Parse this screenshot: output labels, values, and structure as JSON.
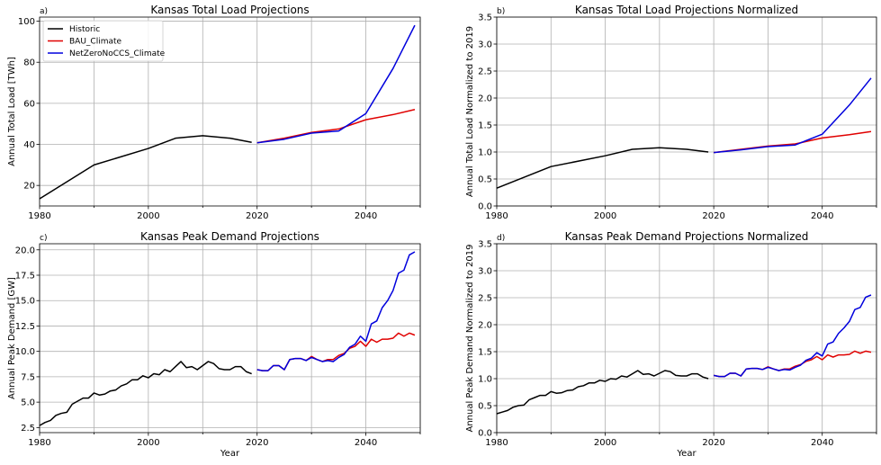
{
  "colors": {
    "Historic": "#000000",
    "BAU_Climate": "#e00000",
    "NetZeroNoCCS_Climate": "#0000dd"
  },
  "chart_data": [
    {
      "type": "line",
      "panel_label": "a)",
      "title": "Kansas Total Load Projections",
      "xlabel": "",
      "ylabel": "Annual Total Load [TWh]",
      "xlim": [
        1980,
        2050
      ],
      "ylim": [
        10,
        102
      ],
      "xticks": [
        1980,
        2000,
        2020,
        2040
      ],
      "yticks": [
        20,
        40,
        60,
        80,
        100
      ],
      "ytick_labels": [
        "20",
        "40",
        "60",
        "80",
        "100"
      ],
      "grid": true,
      "legend": "top-left",
      "series": [
        {
          "name": "Historic",
          "x": [
            1980,
            1990,
            2000,
            2005,
            2010,
            2015,
            2019
          ],
          "y": [
            13.5,
            30,
            38,
            43,
            44.2,
            43,
            41
          ]
        },
        {
          "name": "BAU_Climate",
          "x": [
            2020,
            2025,
            2030,
            2035,
            2040,
            2045,
            2049
          ],
          "y": [
            40.8,
            43,
            45.8,
            47.5,
            52,
            54.5,
            57
          ]
        },
        {
          "name": "NetZeroNoCCS_Climate",
          "x": [
            2020,
            2025,
            2030,
            2035,
            2040,
            2045,
            2049
          ],
          "y": [
            40.8,
            42.5,
            45.5,
            46.5,
            55,
            77,
            98
          ]
        }
      ]
    },
    {
      "type": "line",
      "panel_label": "b)",
      "title": "Kansas Total Load Projections Normalized",
      "xlabel": "",
      "ylabel": "Annual Total Load Normalized to 2019",
      "xlim": [
        1980,
        2050
      ],
      "ylim": [
        0,
        3.5
      ],
      "xticks": [
        1980,
        2000,
        2020,
        2040
      ],
      "yticks": [
        0,
        0.5,
        1,
        1.5,
        2,
        2.5,
        3,
        3.5
      ],
      "ytick_labels": [
        "0.0",
        "0.5",
        "1.0",
        "1.5",
        "2.0",
        "2.5",
        "3.0",
        "3.5"
      ],
      "grid": true,
      "series": [
        {
          "name": "Historic",
          "x": [
            1980,
            1990,
            2000,
            2005,
            2010,
            2015,
            2019
          ],
          "y": [
            0.33,
            0.73,
            0.93,
            1.05,
            1.08,
            1.05,
            1.0
          ]
        },
        {
          "name": "BAU_Climate",
          "x": [
            2020,
            2025,
            2030,
            2035,
            2040,
            2045,
            2049
          ],
          "y": [
            0.99,
            1.05,
            1.11,
            1.15,
            1.26,
            1.32,
            1.38
          ]
        },
        {
          "name": "NetZeroNoCCS_Climate",
          "x": [
            2020,
            2025,
            2030,
            2035,
            2040,
            2045,
            2049
          ],
          "y": [
            0.99,
            1.04,
            1.1,
            1.13,
            1.33,
            1.87,
            2.37
          ]
        }
      ]
    },
    {
      "type": "line",
      "panel_label": "c)",
      "title": "Kansas Peak Demand Projections",
      "xlabel": "Year",
      "ylabel": "Annual Peak Demand [GW]",
      "xlim": [
        1980,
        2050
      ],
      "ylim": [
        2.0,
        20.6
      ],
      "xticks": [
        1980,
        2000,
        2020,
        2040
      ],
      "yticks": [
        2.5,
        5,
        7.5,
        10,
        12.5,
        15,
        17.5,
        20
      ],
      "ytick_labels": [
        "2.5",
        "5.0",
        "7.5",
        "10.0",
        "12.5",
        "15.0",
        "17.5",
        "20.0"
      ],
      "grid": true,
      "series": [
        {
          "name": "Historic",
          "x": [
            1980,
            1981,
            1982,
            1983,
            1984,
            1985,
            1986,
            1987,
            1988,
            1989,
            1990,
            1991,
            1992,
            1993,
            1994,
            1995,
            1996,
            1997,
            1998,
            1999,
            2000,
            2001,
            2002,
            2003,
            2004,
            2005,
            2006,
            2007,
            2008,
            2009,
            2010,
            2011,
            2012,
            2013,
            2014,
            2015,
            2016,
            2017,
            2018,
            2019
          ],
          "y": [
            2.7,
            3.0,
            3.2,
            3.7,
            3.9,
            4.0,
            4.8,
            5.1,
            5.4,
            5.4,
            5.9,
            5.7,
            5.8,
            6.1,
            6.2,
            6.6,
            6.8,
            7.2,
            7.2,
            7.6,
            7.4,
            7.8,
            7.7,
            8.2,
            8.0,
            8.5,
            9.0,
            8.4,
            8.5,
            8.2,
            8.6,
            9.0,
            8.8,
            8.3,
            8.2,
            8.2,
            8.5,
            8.5,
            8.0,
            7.8
          ]
        },
        {
          "name": "BAU_Climate",
          "x": [
            2020,
            2021,
            2022,
            2023,
            2024,
            2025,
            2026,
            2027,
            2028,
            2029,
            2030,
            2031,
            2032,
            2033,
            2034,
            2035,
            2036,
            2037,
            2038,
            2039,
            2040,
            2041,
            2042,
            2043,
            2044,
            2045,
            2046,
            2047,
            2048,
            2049
          ],
          "y": [
            8.2,
            8.1,
            8.1,
            8.6,
            8.6,
            8.2,
            9.2,
            9.3,
            9.3,
            9.1,
            9.5,
            9.2,
            9.0,
            9.2,
            9.2,
            9.6,
            9.8,
            10.3,
            10.5,
            11.0,
            10.5,
            11.2,
            10.9,
            11.2,
            11.2,
            11.3,
            11.8,
            11.5,
            11.8,
            11.6
          ]
        },
        {
          "name": "NetZeroNoCCS_Climate",
          "x": [
            2020,
            2021,
            2022,
            2023,
            2024,
            2025,
            2026,
            2027,
            2028,
            2029,
            2030,
            2031,
            2032,
            2033,
            2034,
            2035,
            2036,
            2037,
            2038,
            2039,
            2040,
            2041,
            2042,
            2043,
            2044,
            2045,
            2046,
            2047,
            2048,
            2049
          ],
          "y": [
            8.2,
            8.1,
            8.1,
            8.6,
            8.6,
            8.2,
            9.2,
            9.3,
            9.3,
            9.1,
            9.4,
            9.2,
            9.0,
            9.1,
            9.0,
            9.4,
            9.7,
            10.4,
            10.7,
            11.5,
            11.0,
            12.7,
            13.0,
            14.3,
            15.0,
            16.0,
            17.7,
            18.0,
            19.5,
            19.8
          ]
        }
      ]
    },
    {
      "type": "line",
      "panel_label": "d)",
      "title": "Kansas Peak Demand Projections Normalized",
      "xlabel": "Year",
      "ylabel": "Annual Peak Demand Normalized to 2019",
      "xlim": [
        1980,
        2050
      ],
      "ylim": [
        0,
        3.5
      ],
      "xticks": [
        1980,
        2000,
        2020,
        2040
      ],
      "yticks": [
        0,
        0.5,
        1,
        1.5,
        2,
        2.5,
        3,
        3.5
      ],
      "ytick_labels": [
        "0.0",
        "0.5",
        "1.0",
        "1.5",
        "2.0",
        "2.5",
        "3.0",
        "3.5"
      ],
      "grid": true,
      "series": [
        {
          "name": "Historic",
          "x": [
            1980,
            1981,
            1982,
            1983,
            1984,
            1985,
            1986,
            1987,
            1988,
            1989,
            1990,
            1991,
            1992,
            1993,
            1994,
            1995,
            1996,
            1997,
            1998,
            1999,
            2000,
            2001,
            2002,
            2003,
            2004,
            2005,
            2006,
            2007,
            2008,
            2009,
            2010,
            2011,
            2012,
            2013,
            2014,
            2015,
            2016,
            2017,
            2018,
            2019
          ],
          "y": [
            0.35,
            0.38,
            0.41,
            0.47,
            0.5,
            0.51,
            0.61,
            0.65,
            0.69,
            0.69,
            0.76,
            0.73,
            0.74,
            0.78,
            0.79,
            0.85,
            0.87,
            0.92,
            0.92,
            0.97,
            0.95,
            1.0,
            0.99,
            1.05,
            1.03,
            1.09,
            1.15,
            1.08,
            1.09,
            1.05,
            1.1,
            1.15,
            1.13,
            1.06,
            1.05,
            1.05,
            1.09,
            1.09,
            1.03,
            1.0
          ]
        },
        {
          "name": "BAU_Climate",
          "x": [
            2020,
            2021,
            2022,
            2023,
            2024,
            2025,
            2026,
            2027,
            2028,
            2029,
            2030,
            2031,
            2032,
            2033,
            2034,
            2035,
            2036,
            2037,
            2038,
            2039,
            2040,
            2041,
            2042,
            2043,
            2044,
            2045,
            2046,
            2047,
            2048,
            2049
          ],
          "y": [
            1.06,
            1.04,
            1.04,
            1.1,
            1.1,
            1.05,
            1.18,
            1.19,
            1.19,
            1.17,
            1.22,
            1.18,
            1.15,
            1.18,
            1.18,
            1.23,
            1.26,
            1.32,
            1.35,
            1.41,
            1.35,
            1.44,
            1.4,
            1.44,
            1.44,
            1.45,
            1.51,
            1.47,
            1.51,
            1.49
          ]
        },
        {
          "name": "NetZeroNoCCS_Climate",
          "x": [
            2020,
            2021,
            2022,
            2023,
            2024,
            2025,
            2026,
            2027,
            2028,
            2029,
            2030,
            2031,
            2032,
            2033,
            2034,
            2035,
            2036,
            2037,
            2038,
            2039,
            2040,
            2041,
            2042,
            2043,
            2044,
            2045,
            2046,
            2047,
            2048,
            2049
          ],
          "y": [
            1.06,
            1.04,
            1.04,
            1.1,
            1.1,
            1.05,
            1.18,
            1.19,
            1.19,
            1.17,
            1.21,
            1.18,
            1.15,
            1.17,
            1.16,
            1.21,
            1.25,
            1.34,
            1.38,
            1.48,
            1.42,
            1.64,
            1.68,
            1.84,
            1.94,
            2.06,
            2.28,
            2.32,
            2.51,
            2.55
          ]
        }
      ]
    }
  ]
}
